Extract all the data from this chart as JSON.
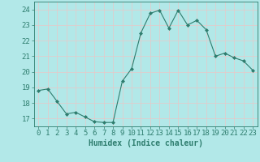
{
  "x": [
    0,
    1,
    2,
    3,
    4,
    5,
    6,
    7,
    8,
    9,
    10,
    11,
    12,
    13,
    14,
    15,
    16,
    17,
    18,
    19,
    20,
    21,
    22,
    23
  ],
  "y": [
    18.8,
    18.9,
    18.1,
    17.3,
    17.4,
    17.1,
    16.8,
    16.75,
    16.75,
    19.4,
    20.2,
    22.5,
    23.75,
    23.95,
    22.8,
    23.95,
    23.0,
    23.3,
    22.7,
    21.0,
    21.2,
    20.9,
    20.7,
    20.1
  ],
  "line_color": "#2e7d6e",
  "marker": "D",
  "marker_size": 2,
  "bg_color": "#b2e8e8",
  "grid_color": "#d4f0f0",
  "tick_color": "#2e7d6e",
  "label_color": "#2e7d6e",
  "xlabel": "Humidex (Indice chaleur)",
  "xlim": [
    -0.5,
    23.5
  ],
  "ylim": [
    16.5,
    24.5
  ],
  "yticks": [
    17,
    18,
    19,
    20,
    21,
    22,
    23,
    24
  ],
  "xticks": [
    0,
    1,
    2,
    3,
    4,
    5,
    6,
    7,
    8,
    9,
    10,
    11,
    12,
    13,
    14,
    15,
    16,
    17,
    18,
    19,
    20,
    21,
    22,
    23
  ],
  "xlabel_fontsize": 7,
  "tick_fontsize": 6.5
}
